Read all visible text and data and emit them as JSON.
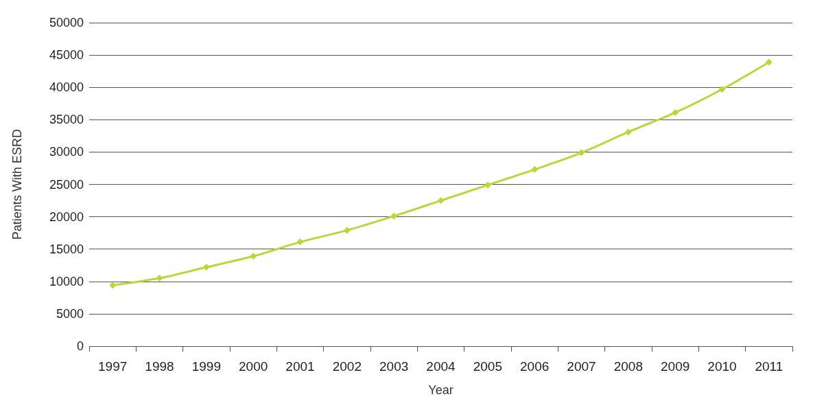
{
  "chart_data": {
    "type": "line",
    "xlabel": "Year",
    "ylabel": "Patients With ESRD",
    "categories": [
      "1997",
      "1998",
      "1999",
      "2000",
      "2001",
      "2002",
      "2003",
      "2004",
      "2005",
      "2006",
      "2007",
      "2008",
      "2009",
      "2010",
      "2011"
    ],
    "series": [
      {
        "color": "#bcd63a",
        "values": [
          9400,
          10500,
          12200,
          13900,
          16100,
          17900,
          20100,
          22500,
          24900,
          27300,
          29900,
          33100,
          36100,
          39700,
          43900
        ]
      }
    ],
    "ylim": [
      0,
      50000
    ],
    "yticks": [
      0,
      5000,
      10000,
      15000,
      20000,
      25000,
      30000,
      35000,
      40000,
      45000,
      50000
    ],
    "grid": "y",
    "marker": "diamond",
    "line_style": "solid"
  }
}
